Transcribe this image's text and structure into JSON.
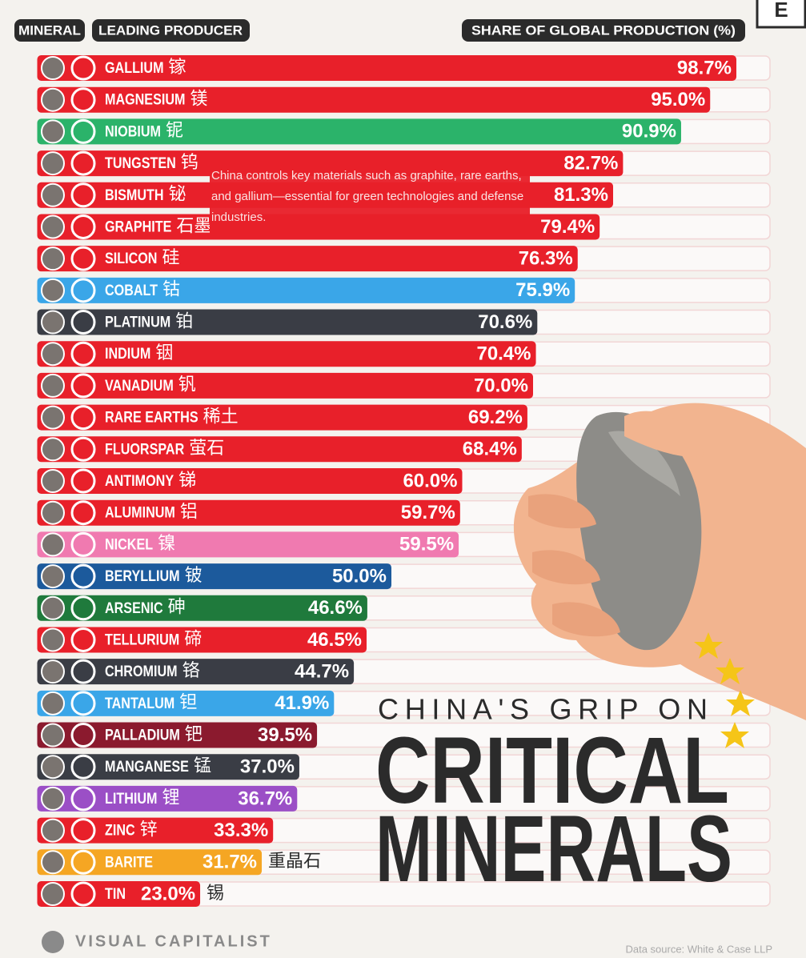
{
  "chart_data": {
    "type": "bar",
    "orientation": "horizontal",
    "header_labels": [
      "MINERAL",
      "LEADING PRODUCER",
      "SHARE OF GLOBAL PRODUCTION (%)"
    ],
    "title": "CHINA'S GRIP ON",
    "title_main": [
      "CRITICAL",
      "MINERALS"
    ],
    "annotation": "China controls key materials such as graphite, rare earths, and gallium—essential for green technologies and defense industries.",
    "brand": "VISUAL CAPITALIST",
    "source": "Data source: White & Case LLP",
    "logo": "E",
    "categories": [
      "GALLIUM",
      "MAGNESIUM",
      "NIOBIUM",
      "TUNGSTEN",
      "BISMUTH",
      "GRAPHITE",
      "SILICON",
      "COBALT",
      "PLATINUM",
      "INDIUM",
      "VANADIUM",
      "RARE EARTHS",
      "FLUORSPAR",
      "ANTIMONY",
      "ALUMINUM",
      "NICKEL",
      "BERYLLIUM",
      "ARSENIC",
      "TELLURIUM",
      "CHROMIUM",
      "TANTALUM",
      "PALLADIUM",
      "MANGANESE",
      "LITHIUM",
      "ZINC",
      "BARITE",
      "TIN"
    ],
    "chinese_names": [
      "镓",
      "镁",
      "铌",
      "钨",
      "铋",
      "石墨",
      "硅",
      "钴",
      "铂",
      "铟",
      "钒",
      "稀土",
      "萤石",
      "锑",
      "铝",
      "镍",
      "铍",
      "砷",
      "碲",
      "铬",
      "钽",
      "钯",
      "锰",
      "锂",
      "锌",
      "重晶石",
      "锡"
    ],
    "values": [
      98.7,
      95.0,
      90.9,
      82.7,
      81.3,
      79.4,
      76.3,
      75.9,
      70.6,
      70.4,
      70.0,
      69.2,
      68.4,
      60.0,
      59.7,
      59.5,
      50.0,
      46.6,
      46.5,
      44.7,
      41.9,
      39.5,
      37.0,
      36.7,
      33.3,
      31.7,
      23.0
    ],
    "value_labels": [
      "98.7%",
      "95.0%",
      "90.9%",
      "82.7%",
      "81.3%",
      "79.4%",
      "76.3%",
      "75.9%",
      "70.6%",
      "70.4%",
      "70.0%",
      "69.2%",
      "68.4%",
      "60.0%",
      "59.7%",
      "59.5%",
      "50.0%",
      "46.6%",
      "46.5%",
      "44.7%",
      "41.9%",
      "39.5%",
      "37.0%",
      "36.7%",
      "33.3%",
      "31.7%",
      "23.0%"
    ],
    "colors": [
      "#e8202a",
      "#e8202a",
      "#2bb36a",
      "#e8202a",
      "#e8202a",
      "#e8202a",
      "#e8202a",
      "#3aa6e8",
      "#3a3d45",
      "#e8202a",
      "#e8202a",
      "#e8202a",
      "#e8202a",
      "#e8202a",
      "#e8202a",
      "#f07ab0",
      "#1c5a9c",
      "#1f7a3c",
      "#e8202a",
      "#3a3d45",
      "#3aa6e8",
      "#8b1a2e",
      "#3a3d45",
      "#9b4fc6",
      "#e8202a",
      "#f5a623",
      "#e8202a"
    ],
    "xlim": [
      0,
      100
    ]
  }
}
